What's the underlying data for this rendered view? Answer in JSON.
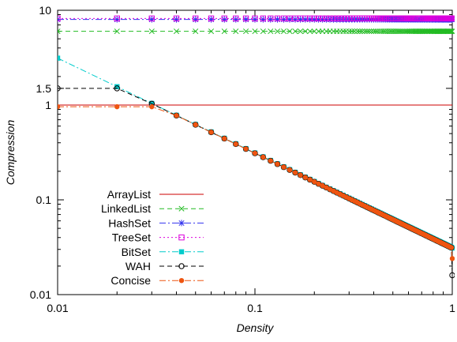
{
  "chart_data": {
    "type": "line",
    "xlabel": "Density",
    "ylabel": "Compression",
    "xscale": "log",
    "yscale": "log",
    "xlim": [
      0.01,
      1
    ],
    "ylim": [
      0.01,
      10
    ],
    "x_ticks": [
      {
        "value": 0.01,
        "label": "0.01"
      },
      {
        "value": 0.1,
        "label": "0.1"
      },
      {
        "value": 1,
        "label": "1"
      }
    ],
    "y_ticks": [
      {
        "value": 0.01,
        "label": "0.01"
      },
      {
        "value": 0.1,
        "label": "0.1"
      },
      {
        "value": 1,
        "label": "1"
      },
      {
        "value": 1.5,
        "label": "1.5"
      },
      {
        "value": 10,
        "label": "10"
      }
    ],
    "grid": false,
    "legend_position": "bottom-left",
    "series": [
      {
        "name": "ArrayList",
        "color": "#cc0000",
        "dash": "solid",
        "marker": "none",
        "formula": "constant",
        "value": 1.0
      },
      {
        "name": "LinkedList",
        "color": "#22bb22",
        "dash": "dashed",
        "marker": "x",
        "formula": "constant",
        "value": 6.0
      },
      {
        "name": "HashSet",
        "color": "#3333ee",
        "dash": "dashdot",
        "marker": "star",
        "formula": "constant",
        "value": 8.0
      },
      {
        "name": "TreeSet",
        "color": "#dd00dd",
        "dash": "dotted",
        "marker": "open-square",
        "formula": "constant",
        "value": 8.2
      },
      {
        "name": "BitSet",
        "color": "#00cccc",
        "dash": "dashdot",
        "marker": "filled-square",
        "formula": "inverse",
        "coef": 0.03125,
        "end_value": 0.031
      },
      {
        "name": "WAH",
        "color": "#000000",
        "dash": "dashed",
        "marker": "open-circle",
        "formula": "inverse_capped",
        "coef": 0.031,
        "cap": 1.5,
        "end_value": 0.016
      },
      {
        "name": "Concise",
        "color": "#ee5511",
        "dash": "dashdot",
        "marker": "filled-circle",
        "formula": "inverse_capped",
        "coef": 0.031,
        "cap": 0.96,
        "end_value": 0.024
      }
    ]
  }
}
